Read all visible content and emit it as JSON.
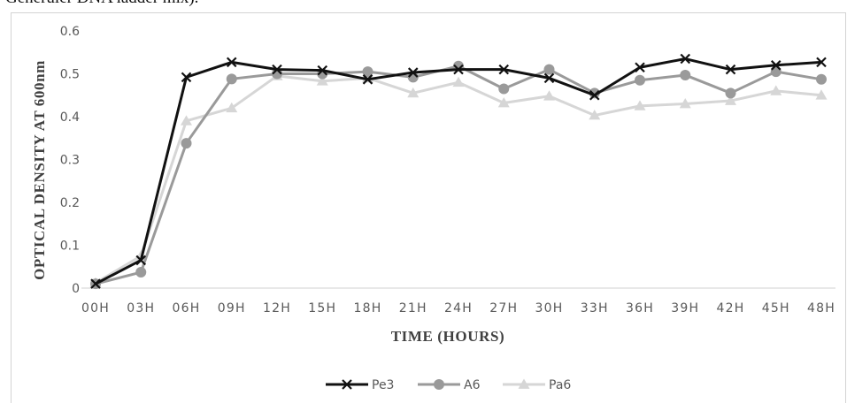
{
  "page": {
    "top_text": "Generuler DNA ladder mix)."
  },
  "chart_data": {
    "type": "line",
    "title": "",
    "xlabel": "TIME  (HOURS)",
    "ylabel": "OPTICAL DENSITY AT 600nm",
    "categories": [
      "00H",
      "03H",
      "06H",
      "09H",
      "12H",
      "15H",
      "18H",
      "21H",
      "24H",
      "27H",
      "30H",
      "33H",
      "36H",
      "39H",
      "42H",
      "45H",
      "48H"
    ],
    "ylim": [
      0,
      0.6
    ],
    "yticks": [
      "0",
      "0.1",
      "0.2",
      "0.3",
      "0.4",
      "0.5",
      "0.6"
    ],
    "grid": false,
    "legend_position": "bottom",
    "series": [
      {
        "name": "Pe3",
        "marker": "x",
        "color": "#111111",
        "values": [
          0.01,
          0.065,
          0.492,
          0.527,
          0.51,
          0.508,
          0.487,
          0.503,
          0.51,
          0.51,
          0.49,
          0.45,
          0.515,
          0.535,
          0.51,
          0.52,
          0.527
        ]
      },
      {
        "name": "A6",
        "marker": "circle",
        "color": "#9a9a9a",
        "values": [
          0.01,
          0.037,
          0.338,
          0.488,
          0.5,
          0.5,
          0.505,
          0.492,
          0.518,
          0.465,
          0.51,
          0.455,
          0.485,
          0.497,
          0.455,
          0.505,
          0.487
        ]
      },
      {
        "name": "Pa6",
        "marker": "triangle",
        "color": "#d6d6d6",
        "values": [
          0.012,
          0.075,
          0.39,
          0.42,
          0.495,
          0.483,
          0.49,
          0.455,
          0.48,
          0.432,
          0.448,
          0.403,
          0.425,
          0.43,
          0.437,
          0.46,
          0.45
        ]
      }
    ]
  }
}
